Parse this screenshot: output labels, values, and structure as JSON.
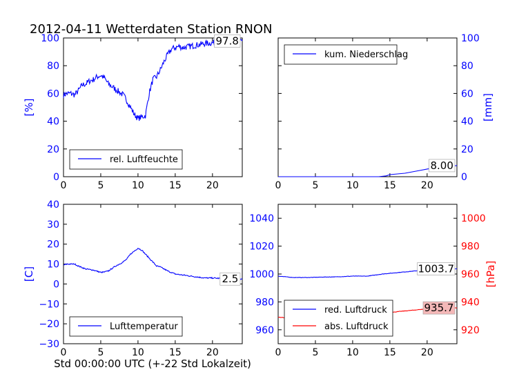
{
  "figure": {
    "title": "2012-04-11 Wetterdaten Station RNON",
    "xlabel": "Std 00:00:00 UTC (+-22 Std Lokalzeit)"
  },
  "colors": {
    "blue": "#0000ff",
    "red": "#ff0000",
    "axis": "#000000",
    "box_fill": "#ffffff",
    "value_fill_red": "#f4b8b8"
  },
  "chart_data": [
    {
      "id": "humidity",
      "type": "line",
      "xlim": [
        0,
        24
      ],
      "ylim": [
        0,
        100
      ],
      "xticks": [
        0,
        5,
        10,
        15,
        20
      ],
      "yticks": [
        0,
        20,
        40,
        60,
        80,
        100
      ],
      "ylabel": "[%]",
      "tick_side": "left",
      "tick_color": "#0000ff",
      "value_label": "97.8",
      "legend_placement": "lower-left",
      "series": [
        {
          "name": "rel. Luftfeuchte",
          "color": "#0000ff",
          "x": [
            0,
            0.5,
            1,
            1.5,
            2,
            2.5,
            3,
            3.5,
            4,
            4.5,
            5,
            5.5,
            6,
            6.5,
            7,
            7.5,
            8,
            8.5,
            9,
            9.5,
            10,
            10.5,
            11,
            11.5,
            12,
            12.5,
            13,
            13.5,
            14,
            14.5,
            15,
            15.5,
            16,
            17,
            18,
            19,
            20,
            21,
            22,
            23,
            24
          ],
          "y": [
            59,
            60,
            60,
            59,
            62,
            66,
            67,
            69,
            70,
            72,
            73,
            71,
            67,
            65,
            63,
            61,
            59,
            55,
            50,
            45,
            42,
            43,
            44,
            60,
            70,
            72,
            77,
            83,
            88,
            92,
            93,
            94,
            93,
            94,
            95,
            96,
            96.5,
            97,
            97.5,
            97.8,
            97.8
          ],
          "noise": 2.2
        }
      ]
    },
    {
      "id": "precipitation",
      "type": "line",
      "xlim": [
        0,
        24
      ],
      "ylim": [
        0,
        100
      ],
      "xticks": [
        0,
        5,
        10,
        15,
        20
      ],
      "yticks": [
        0,
        20,
        40,
        60,
        80,
        100
      ],
      "ylabel": "[mm]",
      "tick_side": "right",
      "tick_color": "#0000ff",
      "value_label": "8.00",
      "legend_placement": "upper-left",
      "series": [
        {
          "name": "kum. Niederschlag",
          "color": "#0000ff",
          "x": [
            0,
            13.5,
            14.5,
            15,
            16,
            17,
            18,
            19,
            20,
            21,
            22,
            23,
            24
          ],
          "y": [
            0,
            0,
            0.6,
            1.5,
            2,
            2.5,
            3.5,
            4.5,
            5.5,
            6.5,
            7.2,
            7.6,
            8
          ],
          "noise": 0
        }
      ]
    },
    {
      "id": "temperature",
      "type": "line",
      "xlim": [
        0,
        24
      ],
      "ylim": [
        -30,
        40
      ],
      "xticks": [
        0,
        5,
        10,
        15,
        20
      ],
      "yticks": [
        -30,
        -20,
        -10,
        0,
        10,
        20,
        30,
        40
      ],
      "ylabel": "[C]",
      "tick_side": "left",
      "tick_color": "#0000ff",
      "value_label": "2.5",
      "legend_placement": "lower-left",
      "series": [
        {
          "name": "Lufttemperatur",
          "color": "#0000ff",
          "x": [
            0,
            0.5,
            1,
            1.5,
            2,
            3,
            4,
            5,
            5.5,
            6,
            7,
            7.5,
            8,
            8.5,
            9,
            9.5,
            10,
            10.5,
            11,
            11.5,
            12,
            12.5,
            13,
            14,
            15,
            16,
            17,
            18,
            19,
            20,
            21,
            22,
            23,
            24
          ],
          "y": [
            9.5,
            10,
            10,
            10,
            9,
            7.5,
            7,
            5.8,
            6,
            6.5,
            9,
            10,
            11,
            12.5,
            15,
            16.5,
            18,
            17,
            15,
            13,
            11,
            9,
            8.5,
            6.5,
            5,
            4.5,
            4,
            3.5,
            3,
            3,
            2.8,
            2.7,
            2.6,
            2.5
          ],
          "noise": 0.3
        }
      ]
    },
    {
      "id": "pressure",
      "type": "line",
      "xlim": [
        0,
        24
      ],
      "ylim": [
        950,
        1050
      ],
      "ylim_right": [
        910,
        1010
      ],
      "xticks": [
        0,
        5,
        10,
        15,
        20
      ],
      "yticks": [
        960,
        980,
        1000,
        1020,
        1040
      ],
      "yticks_right": [
        920,
        940,
        960,
        980,
        1000
      ],
      "ylabel_right": "[hPa]",
      "tick_color": "#0000ff",
      "tick_color_right": "#ff0000",
      "value_label": "1003.7",
      "value_label_2": "935.7",
      "legend_placement": "lower-left",
      "series": [
        {
          "name": "red. Luftdruck",
          "color": "#0000ff",
          "axis": "left",
          "x": [
            0,
            2,
            4,
            6,
            8,
            10,
            12,
            14,
            16,
            18,
            20,
            22,
            24
          ],
          "y": [
            998.5,
            997.5,
            997.5,
            997.8,
            998,
            998.5,
            998.5,
            1000,
            1001,
            1002,
            1003,
            1003.5,
            1003.7
          ],
          "noise": 0.15
        },
        {
          "name": "abs. Luftdruck",
          "color": "#ff0000",
          "axis": "right",
          "x": [
            0,
            2,
            4,
            6,
            8,
            10,
            12,
            14,
            16,
            18,
            20,
            22,
            24
          ],
          "y": [
            929,
            928.5,
            928,
            928.2,
            928.8,
            929.5,
            930,
            931.5,
            933,
            934,
            935,
            935.5,
            935.7
          ],
          "noise": 0.15
        }
      ]
    }
  ]
}
